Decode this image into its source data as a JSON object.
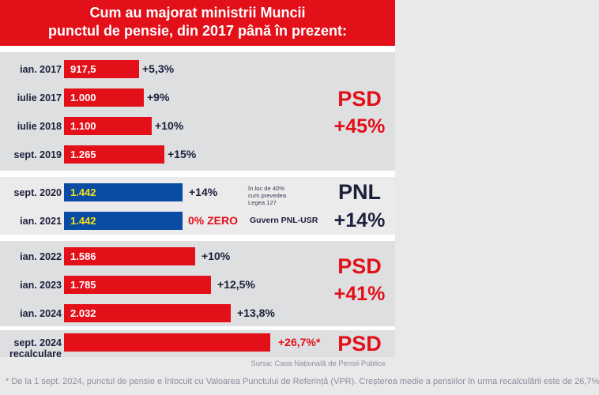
{
  "title": {
    "line1": "Cum au majorat ministrii Muncii",
    "line2": "punctul de pensie, din 2017 până în prezent:"
  },
  "colors": {
    "psd_red": "#e30f19",
    "pnl_blue": "#0a4ca3",
    "pnl_value_text": "#f5e01b",
    "navy": "#1d1f3b"
  },
  "chart_data": {
    "type": "bar",
    "orientation": "horizontal",
    "categories": [
      "ian. 2017",
      "iulie 2017",
      "iulie 2018",
      "sept. 2019",
      "sept. 2020",
      "ian. 2021",
      "ian. 2022",
      "ian. 2023",
      "ian. 2024",
      "sept. 2024 recalculare"
    ],
    "value_labels": [
      "917,5",
      "1.000",
      "1.100",
      "1.265",
      "1.442",
      "1.442",
      "1.586",
      "1.785",
      "2.032",
      ""
    ],
    "values": [
      917.5,
      1000,
      1100,
      1265,
      1442,
      1442,
      1586,
      1785,
      2032,
      null
    ],
    "changes": [
      "+5,3%",
      "+9%",
      "+10%",
      "+15%",
      "+14%",
      "0% ZERO",
      "+10%",
      "+12,5%",
      "+13,8%",
      "+26,7%*"
    ],
    "bar_colors": [
      "red",
      "red",
      "red",
      "red",
      "blue",
      "blue",
      "red",
      "red",
      "red",
      "red"
    ]
  },
  "rows": [
    {
      "label": "ian. 2017",
      "value": "917,5",
      "change": "+5,3%"
    },
    {
      "label": "iulie 2017",
      "value": "1.000",
      "change": "+9%"
    },
    {
      "label": "iulie 2018",
      "value": "1.100",
      "change": "+10%"
    },
    {
      "label": "sept. 2019",
      "value": "1.265",
      "change": "+15%"
    },
    {
      "label": "sept. 2020",
      "value": "1.442",
      "change": "+14%"
    },
    {
      "label": "ian. 2021",
      "value": "1.442",
      "change": "0% ZERO"
    },
    {
      "label": "ian. 2022",
      "value": "1.586",
      "change": "+10%"
    },
    {
      "label": "ian. 2023",
      "value": "1.785",
      "change": "+12,5%"
    },
    {
      "label": "ian. 2024",
      "value": "2.032",
      "change": "+13,8%"
    },
    {
      "label_line1": "sept. 2024",
      "label_line2": "recalculare",
      "change": "+26,7%*"
    }
  ],
  "annotations": {
    "note_line1": "în loc de 40%",
    "note_line2": "cum prevedea",
    "note_line3": "Legea 127",
    "government": "Guvern PNL-USR"
  },
  "parties": {
    "group1_name": "PSD",
    "group1_total": "+45%",
    "group2_name": "PNL",
    "group2_total": "+14%",
    "group3_name": "PSD",
    "group3_total": "+41%",
    "group4_name": "PSD"
  },
  "source": "Sursa: Casa Națională de Pensii Publice",
  "footnote": "* De la 1 sept. 2024, punctul de pensie e înlocuit cu Valoarea Punctului de Referință (VPR). Creșterea medie a pensiilor în urma recalculării este de 26,7%"
}
